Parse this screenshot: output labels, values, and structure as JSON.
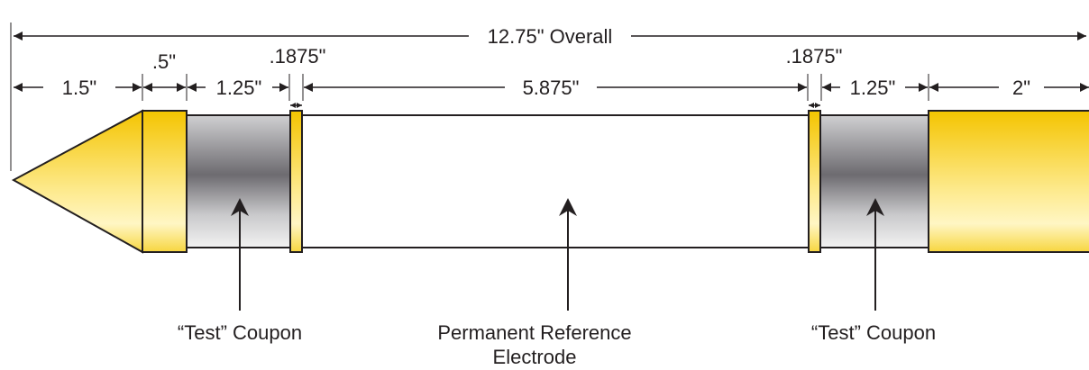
{
  "overall": "12.75\" Overall",
  "dimensions": [
    "1.5\"",
    ".5\"",
    "1.25\"",
    ".1875\"",
    "5.875\"",
    ".1875\"",
    "1.25\"",
    "2\""
  ],
  "callouts": [
    {
      "lines": [
        "“Test” Coupon"
      ]
    },
    {
      "lines": [
        "Permanent Reference",
        "Electrode"
      ]
    },
    {
      "lines": [
        "“Test” Coupon"
      ]
    }
  ]
}
